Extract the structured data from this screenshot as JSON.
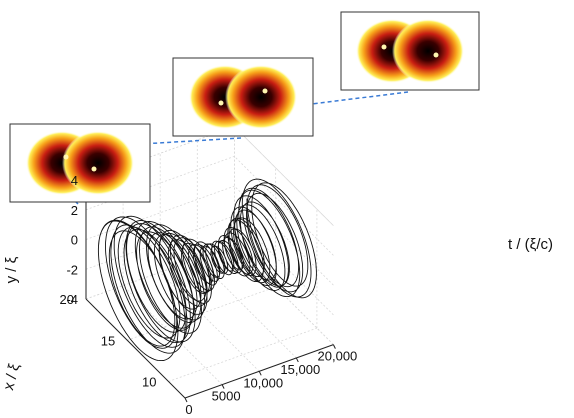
{
  "chart_data": {
    "type": "line",
    "subtype": "3d-trajectory",
    "title": "",
    "xlabel": "x / ξ",
    "ylabel": "y / ξ",
    "tlabel": "t / (ξ/c)",
    "x_ticks": [
      "10",
      "15",
      "20"
    ],
    "y_ticks": [
      "-4",
      "-2",
      "0",
      "2",
      "4"
    ],
    "t_ticks": [
      "0",
      "5000",
      "10,000",
      "15,000",
      "20,000"
    ],
    "xlim": [
      8,
      20
    ],
    "ylim": [
      -4,
      4
    ],
    "tlim": [
      0,
      20000
    ],
    "grid": true,
    "series": [
      {
        "style": "black line",
        "x_center": 14,
        "y_center": 0,
        "t_range": [
          0,
          20000
        ],
        "orbit_radius_x": [
          4.5,
          4.2,
          3.6,
          2.6,
          1.5,
          1.0,
          1.3,
          2.3,
          3.4,
          4.0
        ],
        "orbit_radius_y": [
          3.6,
          3.3,
          2.8,
          2.0,
          1.2,
          0.8,
          1.0,
          1.9,
          2.7,
          3.2
        ],
        "orbit_radius_t": [
          0,
          2200,
          4400,
          6700,
          8900,
          11100,
          13300,
          15600,
          17800,
          20000
        ]
      }
    ],
    "insets": [
      {
        "t": 0,
        "description": "density map of vortex pair"
      },
      {
        "t": 10000,
        "description": "density map of vortex pair"
      },
      {
        "t": 20000,
        "description": "density map of vortex pair"
      }
    ],
    "colors": {
      "trajectory": "#111111",
      "connector": "#3a7bd5",
      "density_core": "#000000",
      "density_mid": "#d0201a",
      "density_edge": "#ffe94d"
    }
  }
}
